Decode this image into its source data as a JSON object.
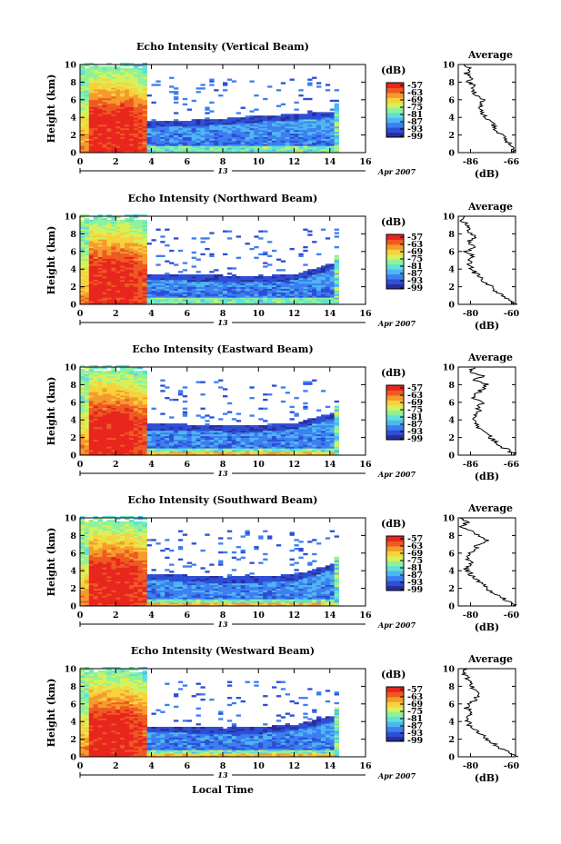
{
  "x_axis": {
    "ticks": [
      "0",
      "2",
      "4",
      "6",
      "8",
      "10",
      "12",
      "14",
      "16"
    ],
    "range": [
      0,
      16
    ],
    "date_day": "13",
    "date_month_year": "Apr 2007",
    "xlabel": "Local Time"
  },
  "colorbar": {
    "unit_label": "(dB)",
    "tick_labels": [
      "-57",
      "-63",
      "-69",
      "-75",
      "-81",
      "-87",
      "-93",
      "-99"
    ],
    "range": [
      -99,
      -57
    ],
    "colors": [
      "#2b2d9c",
      "#2d4fd6",
      "#3d7ff0",
      "#4fb6f2",
      "#5fe0d8",
      "#8ef29a",
      "#d8f05a",
      "#f8d23c",
      "#f59a2c",
      "#ee5a22",
      "#e8261e"
    ]
  },
  "chart_data": [
    {
      "type": "heatmap",
      "title": "Echo Intensity (Vertical Beam)",
      "ylabel": "Height (km)",
      "xlim": [
        0,
        16
      ],
      "ylim": [
        0,
        10
      ],
      "yticks": [
        "0",
        "2",
        "4",
        "6",
        "8",
        "10"
      ],
      "boundary_layer_top_km": [
        [
          4,
          3.5
        ],
        [
          6,
          3.6
        ],
        [
          8,
          3.8
        ],
        [
          10,
          4.1
        ],
        [
          12,
          4.3
        ],
        [
          14,
          4.6
        ]
      ],
      "data_extent_hours": [
        0,
        14.5
      ],
      "average_profile": {
        "title": "Average",
        "xlabel": "(dB)",
        "xticks": [
          "-86",
          "-66"
        ],
        "xlim": [
          -92,
          -64
        ],
        "ylim": [
          0,
          10
        ],
        "points": [
          [
            -64,
            0.2
          ],
          [
            -66,
            0.8
          ],
          [
            -69,
            1.5
          ],
          [
            -72,
            2.2
          ],
          [
            -74,
            2.8
          ],
          [
            -76,
            3.4
          ],
          [
            -78,
            4
          ],
          [
            -80,
            4.5
          ],
          [
            -81,
            5
          ],
          [
            -82,
            5.6
          ],
          [
            -80,
            6
          ],
          [
            -83,
            6.5
          ],
          [
            -85,
            7
          ],
          [
            -84,
            7.5
          ],
          [
            -87,
            8
          ],
          [
            -86,
            8.5
          ],
          [
            -88,
            9
          ],
          [
            -86,
            9.5
          ],
          [
            -88,
            10
          ]
        ]
      }
    },
    {
      "type": "heatmap",
      "title": "Echo Intensity (Northward Beam)",
      "ylabel": "Height (km)",
      "xlim": [
        0,
        16
      ],
      "ylim": [
        0,
        10
      ],
      "yticks": [
        "0",
        "2",
        "4",
        "6",
        "8",
        "10"
      ],
      "boundary_layer_top_km": [
        [
          4,
          3.4
        ],
        [
          6,
          3.3
        ],
        [
          8,
          3.2
        ],
        [
          10,
          3.1
        ],
        [
          12,
          3.4
        ],
        [
          14,
          4.6
        ]
      ],
      "data_extent_hours": [
        0,
        14.5
      ],
      "average_profile": {
        "title": "Average",
        "xlabel": "(dB)",
        "xticks": [
          "-80",
          "-60"
        ],
        "xlim": [
          -86,
          -58
        ],
        "ylim": [
          0,
          10
        ],
        "points": [
          [
            -58,
            0.1
          ],
          [
            -62,
            0.6
          ],
          [
            -66,
            1.2
          ],
          [
            -70,
            2
          ],
          [
            -74,
            2.8
          ],
          [
            -78,
            3.6
          ],
          [
            -80,
            4.2
          ],
          [
            -81,
            5
          ],
          [
            -79,
            5.5
          ],
          [
            -82,
            6
          ],
          [
            -79,
            6.5
          ],
          [
            -81,
            7.2
          ],
          [
            -78,
            7.6
          ],
          [
            -80,
            8.2
          ],
          [
            -82,
            9
          ],
          [
            -84,
            9.5
          ],
          [
            -82,
            10
          ]
        ]
      }
    },
    {
      "type": "heatmap",
      "title": "Echo Intensity (Eastward Beam)",
      "ylabel": "Height (km)",
      "xlim": [
        0,
        16
      ],
      "ylim": [
        0,
        10
      ],
      "yticks": [
        "0",
        "2",
        "4",
        "6",
        "8",
        "10"
      ],
      "boundary_layer_top_km": [
        [
          4,
          3.5
        ],
        [
          6,
          3.4
        ],
        [
          8,
          3.3
        ],
        [
          10,
          3.3
        ],
        [
          12,
          3.6
        ],
        [
          14,
          4.7
        ]
      ],
      "data_extent_hours": [
        0,
        14.5
      ],
      "average_profile": {
        "title": "Average",
        "xlabel": "(dB)",
        "xticks": [
          "-86",
          "-66"
        ],
        "xlim": [
          -92,
          -64
        ],
        "ylim": [
          0,
          10
        ],
        "points": [
          [
            -64,
            0.1
          ],
          [
            -68,
            0.6
          ],
          [
            -72,
            1.2
          ],
          [
            -76,
            2
          ],
          [
            -80,
            2.8
          ],
          [
            -84,
            3.6
          ],
          [
            -85,
            4.2
          ],
          [
            -82,
            5
          ],
          [
            -83,
            5.5
          ],
          [
            -80,
            6
          ],
          [
            -84,
            6.5
          ],
          [
            -83,
            7
          ],
          [
            -80,
            7.5
          ],
          [
            -78,
            8
          ],
          [
            -84,
            8.5
          ],
          [
            -80,
            9
          ],
          [
            -86,
            9.5
          ],
          [
            -84,
            10
          ]
        ]
      }
    },
    {
      "type": "heatmap",
      "title": "Echo Intensity (Southward Beam)",
      "ylabel": "Height (km)",
      "xlim": [
        0,
        16
      ],
      "ylim": [
        0,
        10
      ],
      "yticks": [
        "0",
        "2",
        "4",
        "6",
        "8",
        "10"
      ],
      "boundary_layer_top_km": [
        [
          4,
          3.6
        ],
        [
          6,
          3.4
        ],
        [
          8,
          3.2
        ],
        [
          10,
          3.3
        ],
        [
          12,
          3.5
        ],
        [
          14,
          4.7
        ]
      ],
      "data_extent_hours": [
        0,
        14.5
      ],
      "average_profile": {
        "title": "Average",
        "xlabel": "(dB)",
        "xticks": [
          "-80",
          "-60"
        ],
        "xlim": [
          -86,
          -58
        ],
        "ylim": [
          0,
          10
        ],
        "points": [
          [
            -58,
            0.1
          ],
          [
            -62,
            0.6
          ],
          [
            -67,
            1.2
          ],
          [
            -72,
            2
          ],
          [
            -76,
            2.8
          ],
          [
            -80,
            3.6
          ],
          [
            -82,
            4.2
          ],
          [
            -80,
            5
          ],
          [
            -83,
            5.6
          ],
          [
            -79,
            6.2
          ],
          [
            -76,
            7
          ],
          [
            -72,
            7.5
          ],
          [
            -76,
            8
          ],
          [
            -80,
            8.5
          ],
          [
            -84,
            9
          ],
          [
            -82,
            9.5
          ],
          [
            -84,
            10
          ]
        ]
      }
    },
    {
      "type": "heatmap",
      "title": "Echo Intensity (Westward Beam)",
      "ylabel": "Height (km)",
      "xlim": [
        0,
        16
      ],
      "ylim": [
        0,
        10
      ],
      "yticks": [
        "0",
        "2",
        "4",
        "6",
        "8",
        "10"
      ],
      "boundary_layer_top_km": [
        [
          4,
          3.4
        ],
        [
          6,
          3.3
        ],
        [
          8,
          3.2
        ],
        [
          10,
          3.3
        ],
        [
          12,
          3.6
        ],
        [
          14,
          4.6
        ]
      ],
      "data_extent_hours": [
        0,
        14.5
      ],
      "average_profile": {
        "title": "Average",
        "xlabel": "(dB)",
        "xticks": [
          "-80",
          "-60"
        ],
        "xlim": [
          -86,
          -58
        ],
        "ylim": [
          0,
          10
        ],
        "points": [
          [
            -58,
            0.1
          ],
          [
            -62,
            0.6
          ],
          [
            -67,
            1.2
          ],
          [
            -72,
            2
          ],
          [
            -76,
            2.8
          ],
          [
            -80,
            3.5
          ],
          [
            -82,
            4.2
          ],
          [
            -80,
            5
          ],
          [
            -82,
            5.6
          ],
          [
            -78,
            6.4
          ],
          [
            -76,
            7
          ],
          [
            -78,
            7.6
          ],
          [
            -80,
            8.4
          ],
          [
            -82,
            9
          ],
          [
            -84,
            9.5
          ],
          [
            -82,
            10
          ]
        ]
      }
    }
  ]
}
